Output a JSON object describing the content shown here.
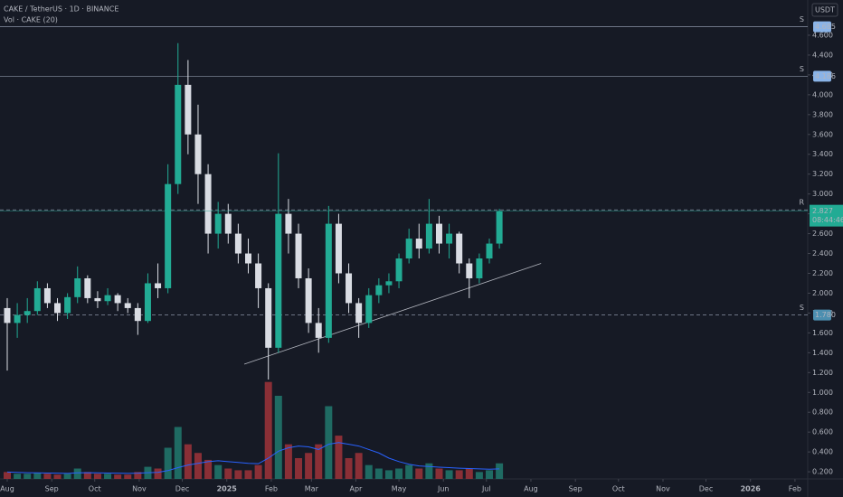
{
  "chart_data": {
    "type": "candlestick",
    "title": "CAKE / TetherUS · 1D · BINANCE",
    "subtitle": "Vol · CAKE (20)",
    "currency": "USDT",
    "countdown": "08:44:46",
    "up_color": "#22ab94",
    "down_color": "#d9dce3",
    "volume_up_color": "#1f6b63",
    "volume_down_color": "#8a2f36",
    "volume_ma_color": "#2962ff",
    "x": [
      0,
      1,
      2,
      3,
      4,
      5,
      6,
      7,
      8,
      9,
      10,
      11,
      12,
      13,
      14,
      15,
      16,
      17,
      18,
      19,
      20,
      21,
      22,
      23,
      24,
      25,
      26,
      27,
      28,
      29,
      30,
      31,
      32,
      33,
      34,
      35,
      36,
      37,
      38,
      39,
      40,
      41,
      42,
      43,
      44,
      45,
      46,
      47,
      48,
      49
    ],
    "open": [
      1.85,
      1.7,
      1.78,
      1.82,
      2.05,
      1.9,
      1.8,
      1.96,
      2.15,
      1.95,
      1.92,
      1.98,
      1.9,
      1.85,
      1.72,
      2.1,
      2.05,
      3.1,
      4.1,
      3.6,
      3.2,
      2.6,
      2.8,
      2.6,
      2.4,
      2.3,
      2.05,
      1.45,
      2.8,
      2.6,
      2.15,
      1.7,
      1.55,
      2.7,
      2.2,
      1.9,
      1.7,
      1.98,
      2.08,
      2.12,
      2.35,
      2.55,
      2.45,
      2.7,
      2.5,
      2.6,
      2.3,
      2.15,
      2.35,
      2.5
    ],
    "high": [
      1.95,
      1.9,
      1.95,
      2.12,
      2.1,
      1.95,
      2.0,
      2.27,
      2.18,
      2.02,
      2.05,
      2.0,
      1.95,
      1.9,
      2.2,
      2.3,
      3.3,
      4.52,
      4.35,
      3.9,
      3.3,
      2.92,
      2.9,
      2.7,
      2.55,
      2.4,
      2.1,
      3.41,
      2.95,
      2.7,
      2.25,
      1.85,
      2.88,
      2.8,
      2.3,
      1.95,
      2.05,
      2.15,
      2.2,
      2.4,
      2.65,
      2.7,
      2.95,
      2.78,
      2.7,
      2.62,
      2.35,
      2.4,
      2.55,
      2.85
    ],
    "low": [
      1.22,
      1.55,
      1.7,
      1.78,
      1.85,
      1.72,
      1.74,
      1.9,
      1.9,
      1.85,
      1.88,
      1.82,
      1.8,
      1.58,
      1.7,
      1.95,
      2.0,
      3.0,
      3.4,
      2.9,
      2.4,
      2.45,
      2.5,
      2.3,
      2.2,
      1.85,
      1.13,
      1.4,
      2.4,
      2.05,
      1.6,
      1.4,
      1.5,
      2.1,
      1.8,
      1.55,
      1.65,
      1.9,
      2.0,
      2.05,
      2.3,
      2.35,
      2.4,
      2.4,
      2.35,
      2.2,
      1.95,
      2.1,
      2.3,
      2.45
    ],
    "close": [
      1.7,
      1.78,
      1.82,
      2.05,
      1.9,
      1.8,
      1.96,
      2.15,
      1.95,
      1.92,
      1.98,
      1.9,
      1.85,
      1.72,
      2.1,
      2.05,
      3.1,
      4.1,
      3.6,
      3.2,
      2.6,
      2.8,
      2.6,
      2.4,
      2.3,
      2.05,
      1.45,
      2.8,
      2.6,
      2.15,
      1.7,
      1.55,
      2.7,
      2.2,
      1.9,
      1.7,
      1.98,
      2.08,
      2.12,
      2.35,
      2.55,
      2.45,
      2.7,
      2.5,
      2.6,
      2.3,
      2.15,
      2.35,
      2.5,
      2.827
    ],
    "volume": [
      40,
      30,
      30,
      35,
      30,
      25,
      30,
      60,
      40,
      30,
      30,
      25,
      25,
      40,
      70,
      60,
      180,
      300,
      200,
      150,
      110,
      80,
      60,
      50,
      50,
      80,
      560,
      480,
      200,
      120,
      150,
      200,
      420,
      250,
      120,
      150,
      80,
      60,
      50,
      60,
      80,
      60,
      90,
      60,
      50,
      50,
      60,
      40,
      50,
      90
    ],
    "volume_ma": [
      40,
      38,
      36,
      35,
      34,
      33,
      32,
      35,
      36,
      35,
      34,
      33,
      32,
      33,
      36,
      38,
      48,
      65,
      80,
      90,
      100,
      105,
      100,
      95,
      90,
      88,
      120,
      160,
      180,
      190,
      185,
      170,
      200,
      210,
      200,
      190,
      170,
      150,
      120,
      100,
      85,
      75,
      72,
      68,
      65,
      62,
      60,
      58,
      56,
      58
    ],
    "volume_lim": [
      0,
      1200
    ],
    "xlim": [
      -0.72,
      79.7
    ],
    "ylim": [
      0.128,
      4.955
    ],
    "xticks": [
      {
        "value": 0,
        "label": "Aug"
      },
      {
        "value": 4.43,
        "label": "Sep"
      },
      {
        "value": 8.71,
        "label": "Oct"
      },
      {
        "value": 13.14,
        "label": "Nov"
      },
      {
        "value": 17.43,
        "label": "Dec"
      },
      {
        "value": 21.86,
        "label": "2025"
      },
      {
        "value": 26.29,
        "label": "Feb"
      },
      {
        "value": 30.29,
        "label": "Mar"
      },
      {
        "value": 34.71,
        "label": "Apr"
      },
      {
        "value": 39,
        "label": "May"
      },
      {
        "value": 43.43,
        "label": "Jun"
      },
      {
        "value": 47.71,
        "label": "Jul"
      },
      {
        "value": 52.14,
        "label": "Aug"
      },
      {
        "value": 56.57,
        "label": "Sep"
      },
      {
        "value": 60.86,
        "label": "Oct"
      },
      {
        "value": 65.29,
        "label": "Nov"
      },
      {
        "value": 69.57,
        "label": "Dec"
      },
      {
        "value": 74,
        "label": "2026"
      },
      {
        "value": 78.43,
        "label": "Feb"
      }
    ],
    "yticks": [
      {
        "value": 0.2,
        "label": "0.200"
      },
      {
        "value": 0.4,
        "label": "0.400"
      },
      {
        "value": 0.6,
        "label": "0.600"
      },
      {
        "value": 0.8,
        "label": "0.800"
      },
      {
        "value": 1,
        "label": "1.000"
      },
      {
        "value": 1.2,
        "label": "1.200"
      },
      {
        "value": 1.4,
        "label": "1.400"
      },
      {
        "value": 1.6,
        "label": "1.600"
      },
      {
        "value": 1.8,
        "label": "1.800"
      },
      {
        "value": 2,
        "label": "2.000"
      },
      {
        "value": 2.2,
        "label": "2.200"
      },
      {
        "value": 2.4,
        "label": "2.400"
      },
      {
        "value": 2.6,
        "label": "2.600"
      },
      {
        "value": 2.8,
        "label": "2.800"
      },
      {
        "value": 3,
        "label": "3.000"
      },
      {
        "value": 3.2,
        "label": "3.200"
      },
      {
        "value": 3.4,
        "label": "3.400"
      },
      {
        "value": 3.6,
        "label": "3.600"
      },
      {
        "value": 3.8,
        "label": "3.800"
      },
      {
        "value": 4,
        "label": "4.000"
      },
      {
        "value": 4.2,
        "label": "4.200"
      },
      {
        "value": 4.4,
        "label": "4.400"
      },
      {
        "value": 4.6,
        "label": "4.600"
      }
    ],
    "levels": [
      {
        "tag": "S",
        "price": 4.685,
        "style": "solid"
      },
      {
        "tag": "S",
        "price": 4.186,
        "style": "solid"
      },
      {
        "tag": "R",
        "price": 2.84,
        "style": "dashed"
      },
      {
        "tag": "S",
        "price": {
          "value": 1.78,
          "label": "1.780"
        },
        "style": "dashed"
      }
    ],
    "trendline": {
      "x": [
        23.6,
        53.15
      ],
      "y": [
        1.285,
        2.3
      ]
    }
  }
}
